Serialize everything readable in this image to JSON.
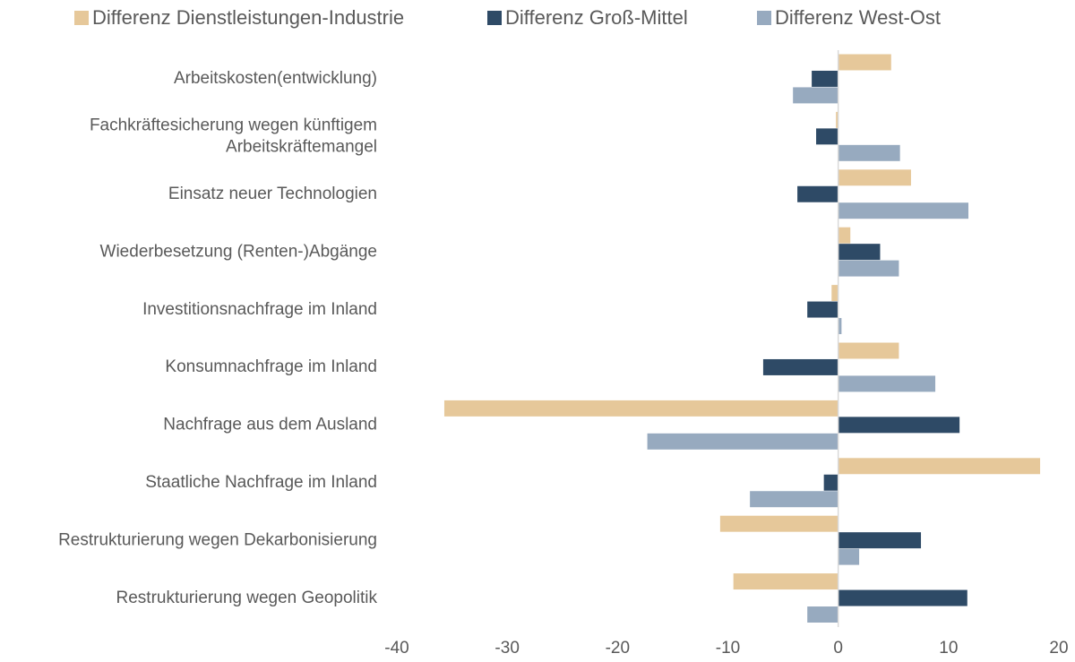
{
  "chart_data": {
    "type": "barh",
    "categories": [
      "Arbeitskosten(entwicklung)",
      "Fachkräftesicherung wegen künftigem\nArbeitskräftemangel",
      "Einsatz neuer Technologien",
      "Wiederbesetzung (Renten-)Abgänge",
      "Investitionsnachfrage im Inland",
      "Konsumnachfrage im Inland",
      "Nachfrage aus dem Ausland",
      "Staatliche Nachfrage im Inland",
      "Restrukturierung wegen Dekarbonisierung",
      "Restrukturierung wegen Geopolitik"
    ],
    "series": [
      {
        "name": "Differenz Dienstleistungen-Industrie",
        "color": "#e6c89a",
        "values": [
          4.8,
          -0.2,
          6.6,
          1.1,
          -0.6,
          5.5,
          -35.7,
          18.3,
          -10.7,
          -9.5
        ]
      },
      {
        "name": "Differenz Groß-Mittel",
        "color": "#2e4a66",
        "values": [
          -2.4,
          -2.0,
          -3.7,
          3.8,
          -2.8,
          -6.8,
          11.0,
          -1.3,
          7.5,
          11.7
        ]
      },
      {
        "name": "Differenz West-Ost",
        "color": "#97aabf",
        "values": [
          -4.1,
          5.6,
          11.8,
          5.5,
          0.3,
          8.8,
          -17.3,
          -8.0,
          1.9,
          -2.8
        ]
      }
    ],
    "xlim": [
      -40,
      20
    ],
    "xticks": [
      -40,
      -30,
      -20,
      -10,
      0,
      10,
      20
    ],
    "legend": "top"
  }
}
